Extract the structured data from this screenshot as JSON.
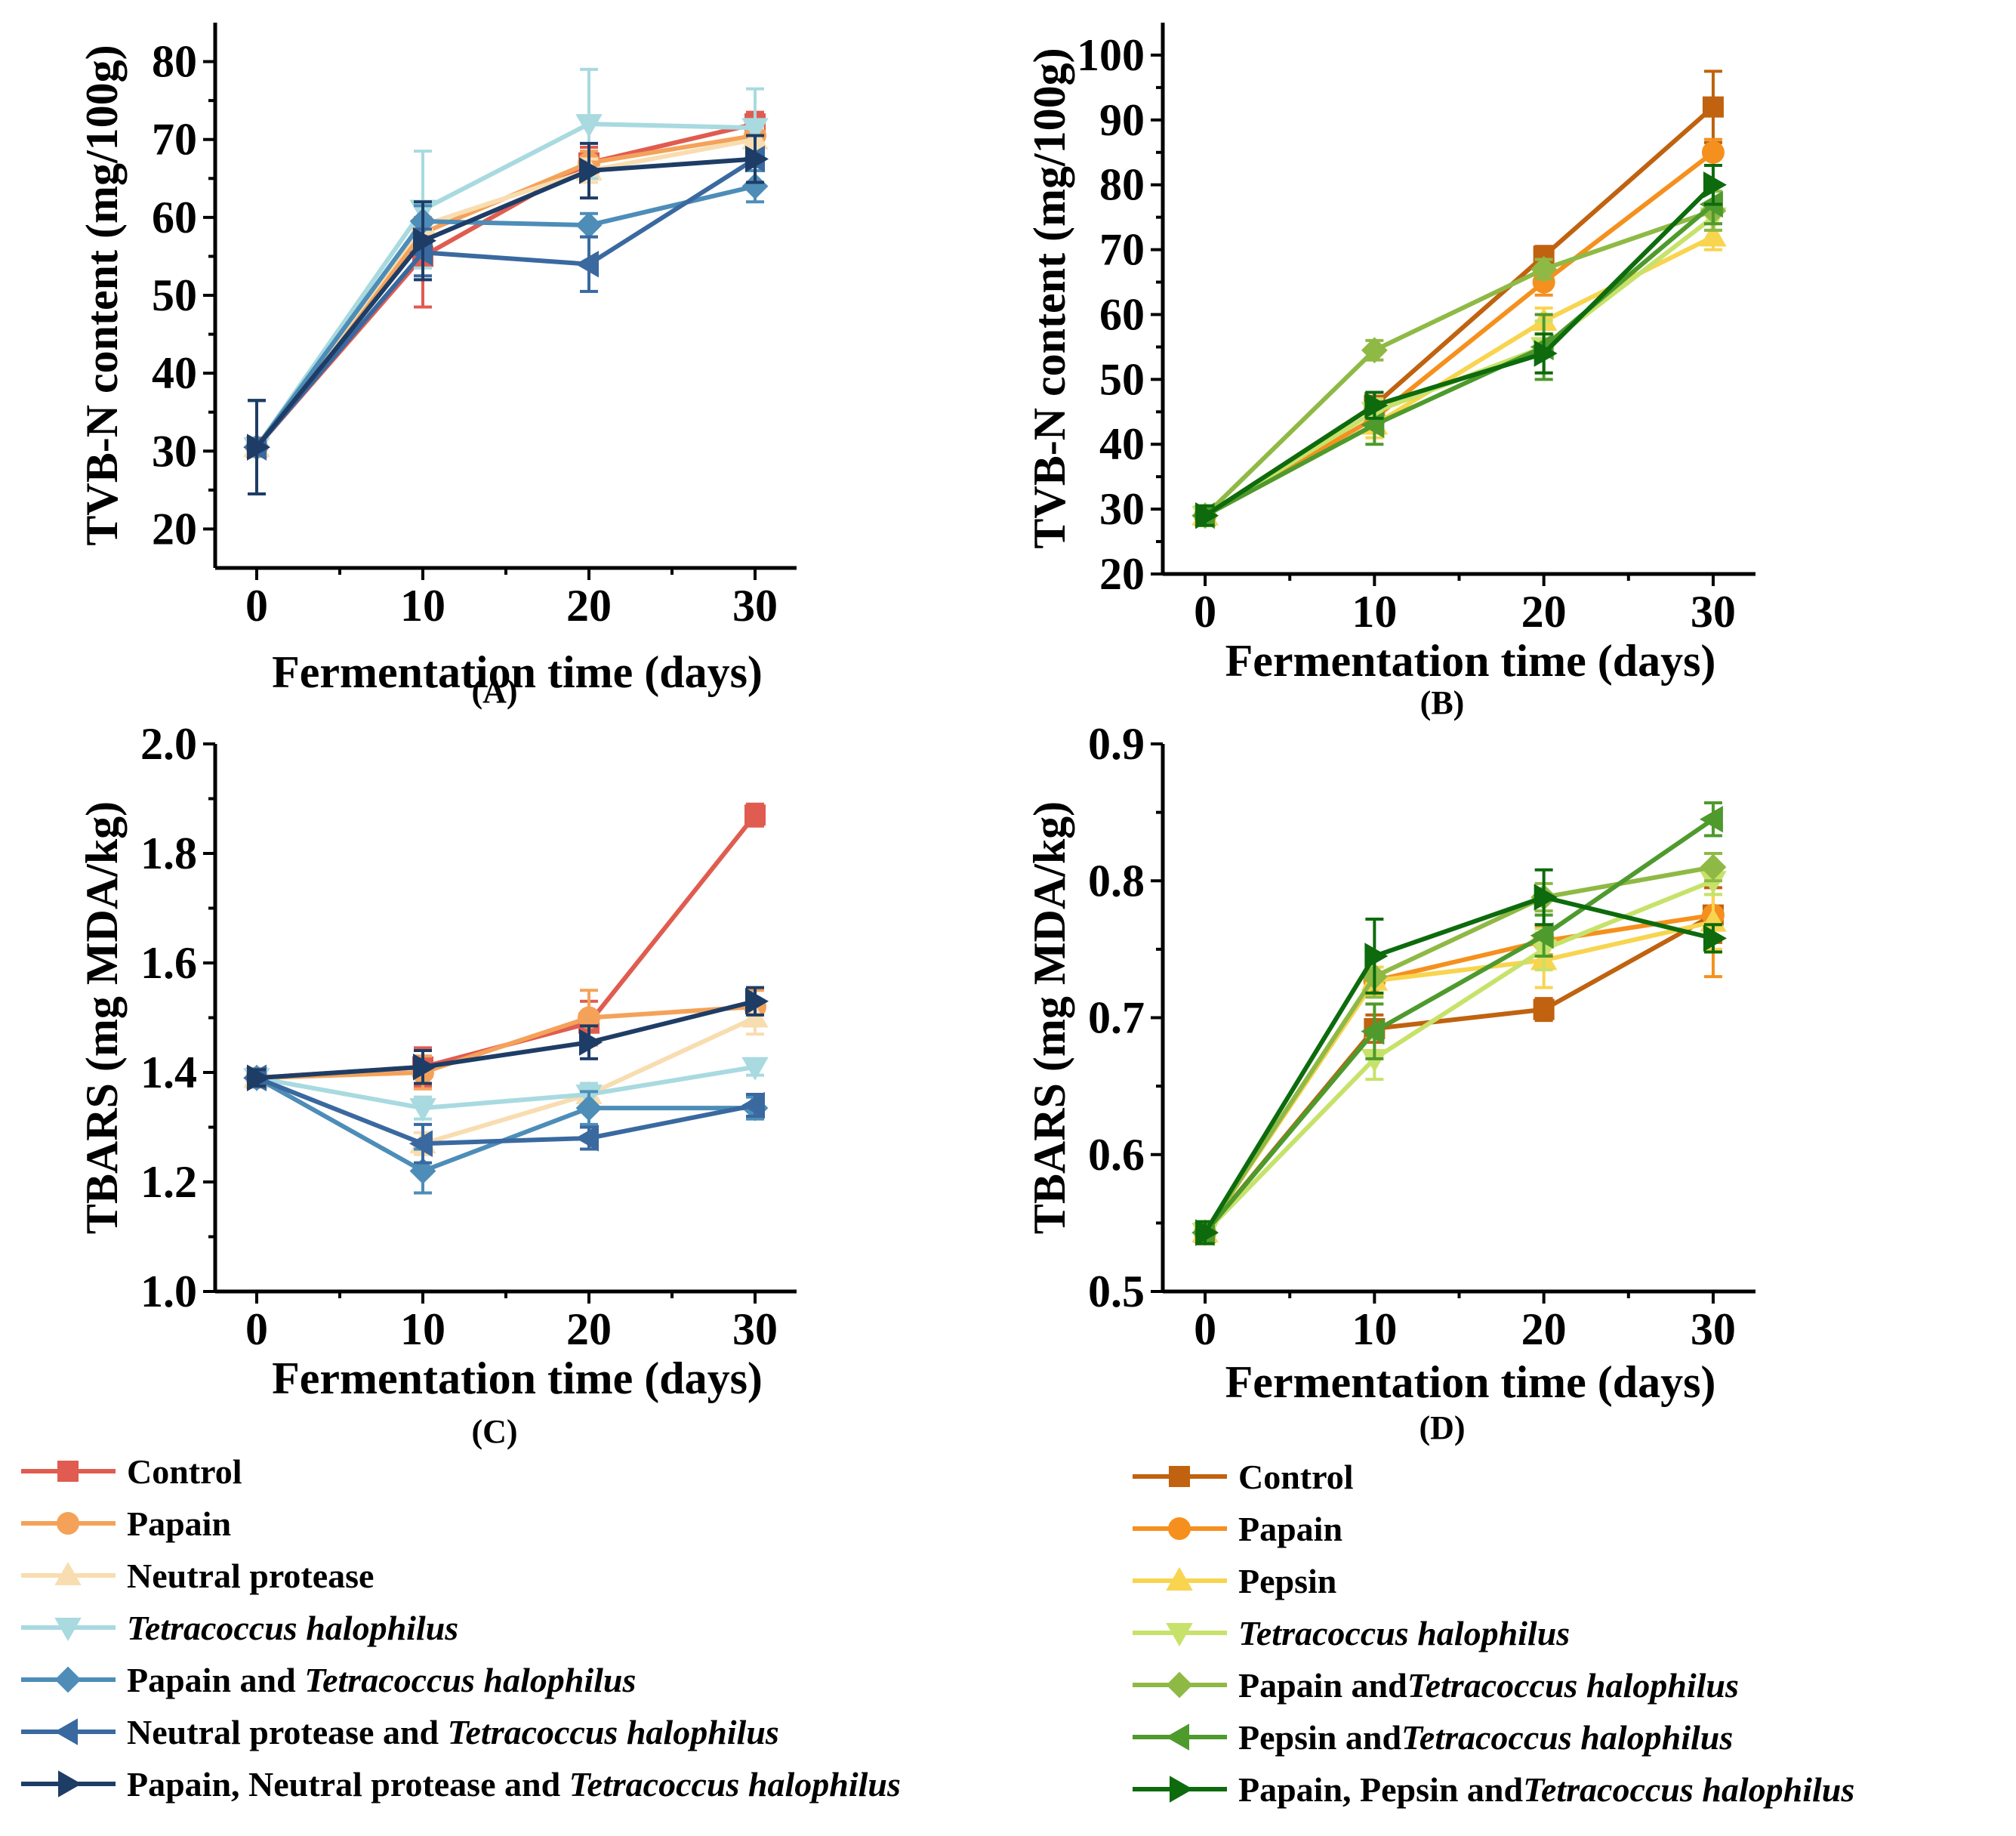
{
  "chart_data": [
    {
      "id": "A",
      "type": "line",
      "panel_label": "(A)",
      "xlabel": "Fermentation time (days)",
      "ylabel": "TVB-N content (mg/100g)",
      "x": [
        0,
        10,
        20,
        30
      ],
      "xlim": [
        -2.5,
        32.5
      ],
      "ylim": [
        15,
        85
      ],
      "xticks": [
        "0",
        "10",
        "20",
        "30"
      ],
      "yticks": [
        "20",
        "30",
        "40",
        "50",
        "60",
        "70",
        "80"
      ],
      "series": [
        {
          "name": "Control",
          "italic": "",
          "color": "#e05c50",
          "marker": "square",
          "values": [
            30.5,
            55,
            67,
            72
          ],
          "errors": [
            6,
            6.5,
            2,
            1.5
          ]
        },
        {
          "name": "Papain",
          "italic": "",
          "color": "#f4a25a",
          "marker": "circle",
          "values": [
            30.5,
            58,
            67,
            70.5
          ],
          "errors": [
            6,
            2,
            1.5,
            1.5
          ]
        },
        {
          "name": "Neutral protease",
          "italic": "",
          "color": "#f8ddb0",
          "marker": "triangle-up",
          "values": [
            30.5,
            59,
            66,
            70
          ],
          "errors": [
            6,
            3,
            1.5,
            1.5
          ]
        },
        {
          "name": "",
          "italic": "Tetracoccus halophilus",
          "color": "#a8dae0",
          "marker": "triangle-down",
          "values": [
            30.5,
            61,
            72,
            71.5
          ],
          "errors": [
            6,
            7.5,
            7,
            5
          ]
        },
        {
          "name": "Papain and ",
          "italic": "Tetracoccus halophilus",
          "color": "#4d8db8",
          "marker": "diamond",
          "values": [
            30.5,
            59.5,
            59,
            64
          ],
          "errors": [
            6,
            2,
            1.5,
            2
          ]
        },
        {
          "name": "Neutral protease and ",
          "italic": "Tetracoccus halophilus",
          "color": "#3a69a0",
          "marker": "triangle-left",
          "values": [
            30.5,
            55.5,
            54,
            67.5
          ],
          "errors": [
            6,
            3,
            3.5,
            3
          ]
        },
        {
          "name": "Papain, Neutral protease and ",
          "italic": "Tetracoccus halophilus",
          "color": "#1e3d66",
          "marker": "triangle-right",
          "values": [
            30.5,
            57,
            66,
            67.5
          ],
          "errors": [
            6,
            5,
            3.5,
            3
          ]
        }
      ]
    },
    {
      "id": "B",
      "type": "line",
      "panel_label": "(B)",
      "xlabel": "Fermentation time (days)",
      "ylabel": "TVB-N content (mg/100g)",
      "x": [
        0,
        10,
        20,
        30
      ],
      "xlim": [
        -2.5,
        32.5
      ],
      "ylim": [
        20,
        105
      ],
      "xticks": [
        "0",
        "10",
        "20",
        "30"
      ],
      "yticks": [
        "20",
        "30",
        "40",
        "50",
        "60",
        "70",
        "80",
        "90",
        "100"
      ],
      "series": [
        {
          "name": "Control",
          "italic": "",
          "color": "#c0620f",
          "marker": "square",
          "values": [
            29,
            46,
            69,
            92
          ],
          "errors": [
            1.5,
            2,
            1.5,
            5.5
          ]
        },
        {
          "name": "Papain",
          "italic": "",
          "color": "#f5901e",
          "marker": "circle",
          "values": [
            29,
            44,
            65,
            85
          ],
          "errors": [
            1.5,
            2,
            2,
            2
          ]
        },
        {
          "name": "Pepsin",
          "italic": "",
          "color": "#f8d44f",
          "marker": "triangle-up",
          "values": [
            29,
            43,
            59,
            72
          ],
          "errors": [
            1.5,
            2,
            2,
            2
          ]
        },
        {
          "name": "",
          "italic": "Tetracoccus halophilus",
          "color": "#c7e26a",
          "marker": "triangle-down",
          "values": [
            29,
            45,
            55,
            75
          ],
          "errors": [
            1.5,
            2,
            4,
            2
          ]
        },
        {
          "name": "Papain and",
          "italic": "Tetracoccus halophilus",
          "color": "#8fb945",
          "marker": "diamond",
          "values": [
            29,
            54.5,
            67,
            76
          ],
          "errors": [
            1.5,
            1.5,
            1.5,
            3
          ]
        },
        {
          "name": "Pepsin and",
          "italic": "Tetracoccus halophilus",
          "color": "#4e9a2d",
          "marker": "triangle-left",
          "values": [
            29,
            43,
            55,
            77
          ],
          "errors": [
            1.5,
            3,
            5,
            3
          ]
        },
        {
          "name": "Papain, Pepsin and",
          "italic": "Tetracoccus halophilus",
          "color": "#0d6b0d",
          "marker": "triangle-right",
          "values": [
            29,
            46,
            54,
            80
          ],
          "errors": [
            1.5,
            2,
            3,
            3
          ]
        }
      ]
    },
    {
      "id": "C",
      "type": "line",
      "panel_label": "(C)",
      "xlabel": "Fermentation time (days)",
      "ylabel": "TBARS (mg MDA/kg)",
      "x": [
        0,
        10,
        20,
        30
      ],
      "xlim": [
        -2.5,
        32.5
      ],
      "ylim": [
        1.0,
        2.0
      ],
      "xticks": [
        "0",
        "10",
        "20",
        "30"
      ],
      "yticks": [
        "1.0",
        "1.2",
        "1.4",
        "1.6",
        "1.8",
        "2.0"
      ],
      "series": [
        {
          "name": "Control",
          "italic": "",
          "color": "#e05c50",
          "marker": "square",
          "values": [
            1.39,
            1.41,
            1.49,
            1.87
          ],
          "errors": [
            0.015,
            0.035,
            0.04,
            0.02
          ]
        },
        {
          "name": "Papain",
          "italic": "",
          "color": "#f4a25a",
          "marker": "circle",
          "values": [
            1.39,
            1.4,
            1.5,
            1.52
          ],
          "errors": [
            0.015,
            0.03,
            0.05,
            0.03
          ]
        },
        {
          "name": "Neutral protease",
          "italic": "",
          "color": "#f8ddb0",
          "marker": "triangle-up",
          "values": [
            1.39,
            1.27,
            1.36,
            1.5
          ],
          "errors": [
            0.015,
            0.02,
            0.02,
            0.03
          ]
        },
        {
          "name": "",
          "italic": "Tetracoccus halophilus",
          "color": "#a8dae0",
          "marker": "triangle-down",
          "values": [
            1.39,
            1.335,
            1.36,
            1.41
          ],
          "errors": [
            0.015,
            0.02,
            0.02,
            0.015
          ]
        },
        {
          "name": "Papain and ",
          "italic": "Tetracoccus halophilus",
          "color": "#4d8db8",
          "marker": "diamond",
          "values": [
            1.39,
            1.22,
            1.335,
            1.335
          ],
          "errors": [
            0.015,
            0.04,
            0.03,
            0.02
          ]
        },
        {
          "name": "Neutral protease and ",
          "italic": "Tetracoccus halophilus",
          "color": "#3a69a0",
          "marker": "triangle-left",
          "values": [
            1.39,
            1.27,
            1.28,
            1.34
          ],
          "errors": [
            0.015,
            0.035,
            0.02,
            0.02
          ]
        },
        {
          "name": "Papain, Neutral protease and ",
          "italic": "Tetracoccus halophilus",
          "color": "#1e3d66",
          "marker": "triangle-right",
          "values": [
            1.39,
            1.41,
            1.455,
            1.53
          ],
          "errors": [
            0.015,
            0.03,
            0.03,
            0.025
          ]
        }
      ]
    },
    {
      "id": "D",
      "type": "line",
      "panel_label": "(D)",
      "xlabel": "Fermentation time (days)",
      "ylabel": "TBARS (mg MDA/kg)",
      "x": [
        0,
        10,
        20,
        30
      ],
      "xlim": [
        -2.5,
        32.5
      ],
      "ylim": [
        0.5,
        0.9
      ],
      "xticks": [
        "0",
        "10",
        "20",
        "30"
      ],
      "yticks": [
        "0.5",
        "0.6",
        "0.7",
        "0.8",
        "0.9"
      ],
      "series": [
        {
          "name": "Control",
          "italic": "",
          "color": "#c0620f",
          "marker": "square",
          "values": [
            0.543,
            0.692,
            0.706,
            0.775
          ],
          "errors": [
            0.008,
            0.01,
            0.008,
            0.02
          ]
        },
        {
          "name": "Papain",
          "italic": "",
          "color": "#f5901e",
          "marker": "circle",
          "values": [
            0.543,
            0.727,
            0.756,
            0.775
          ],
          "errors": [
            0.008,
            0.01,
            0.01,
            0.045
          ]
        },
        {
          "name": "Pepsin",
          "italic": "",
          "color": "#f8d44f",
          "marker": "triangle-up",
          "values": [
            0.543,
            0.727,
            0.742,
            0.77
          ],
          "errors": [
            0.008,
            0.01,
            0.02,
            0.02
          ]
        },
        {
          "name": "",
          "italic": "Tetracoccus halophilus",
          "color": "#c7e26a",
          "marker": "triangle-down",
          "values": [
            0.543,
            0.67,
            0.75,
            0.8
          ],
          "errors": [
            0.008,
            0.015,
            0.015,
            0.01
          ]
        },
        {
          "name": "Papain and",
          "italic": "Tetracoccus halophilus",
          "color": "#8fb945",
          "marker": "diamond",
          "values": [
            0.543,
            0.73,
            0.788,
            0.81
          ],
          "errors": [
            0.008,
            0.015,
            0.01,
            0.01
          ]
        },
        {
          "name": "Pepsin and",
          "italic": "Tetracoccus halophilus",
          "color": "#4e9a2d",
          "marker": "triangle-left",
          "values": [
            0.543,
            0.69,
            0.76,
            0.845
          ],
          "errors": [
            0.008,
            0.02,
            0.015,
            0.012
          ]
        },
        {
          "name": "Papain, Pepsin and",
          "italic": "Tetracoccus halophilus",
          "color": "#0d6b0d",
          "marker": "triangle-right",
          "values": [
            0.543,
            0.745,
            0.788,
            0.758
          ],
          "errors": [
            0.008,
            0.027,
            0.02,
            0.01
          ]
        }
      ]
    }
  ]
}
